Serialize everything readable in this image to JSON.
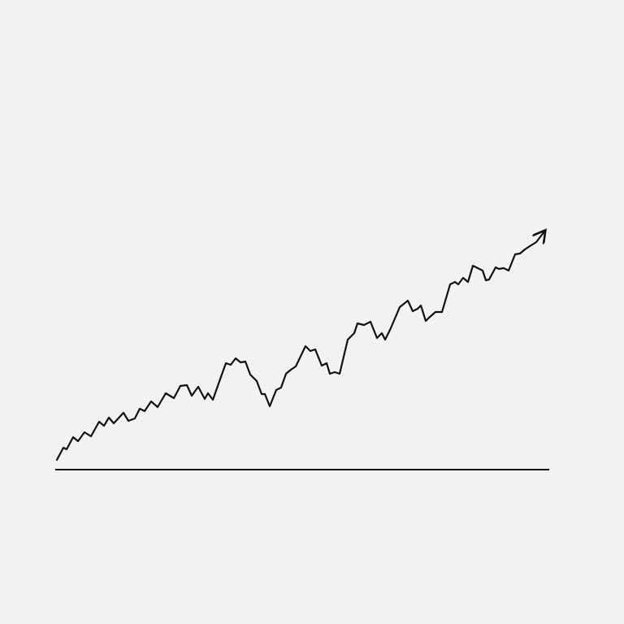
{
  "chart_data": {
    "type": "line",
    "x": [
      70,
      78,
      82,
      90,
      96,
      104,
      112,
      122,
      128,
      134,
      140,
      152,
      158,
      166,
      172,
      178,
      186,
      194,
      204,
      214,
      222,
      230,
      236,
      244,
      252,
      256,
      262,
      268,
      278,
      284,
      290,
      296,
      302,
      308,
      316,
      322,
      326,
      332,
      340,
      346,
      352,
      358,
      364,
      376,
      382,
      388,
      396,
      402,
      406,
      412,
      418,
      428,
      436,
      440,
      448,
      456,
      464,
      470,
      474,
      480,
      486,
      492,
      502,
      508,
      514,
      518,
      524,
      528,
      536,
      544,
      554,
      560,
      564,
      570,
      576,
      582,
      588,
      594,
      598,
      602,
      610,
      614,
      620,
      626,
      634,
      640,
      646,
      652,
      660,
      670
    ],
    "values": [
      12,
      27,
      25,
      40,
      35,
      46,
      41,
      59,
      54,
      64,
      57,
      70,
      60,
      63,
      75,
      72,
      84,
      77,
      94,
      88,
      103,
      104,
      91,
      102,
      87,
      94,
      86,
      103,
      131,
      129,
      137,
      132,
      133,
      117,
      109,
      93,
      93,
      78,
      98,
      101,
      118,
      123,
      127,
      152,
      146,
      148,
      128,
      131,
      118,
      120,
      118,
      160,
      168,
      180,
      178,
      182,
      162,
      168,
      160,
      172,
      186,
      200,
      208,
      195,
      198,
      202,
      183,
      187,
      194,
      194,
      228,
      231,
      228,
      236,
      231,
      251,
      248,
      245,
      233,
      234,
      249,
      247,
      248,
      245,
      265,
      266,
      271,
      275,
      280,
      293
    ],
    "xlim": [
      0,
      768
    ],
    "ylim": [
      0,
      578
    ],
    "color": "#111111"
  }
}
